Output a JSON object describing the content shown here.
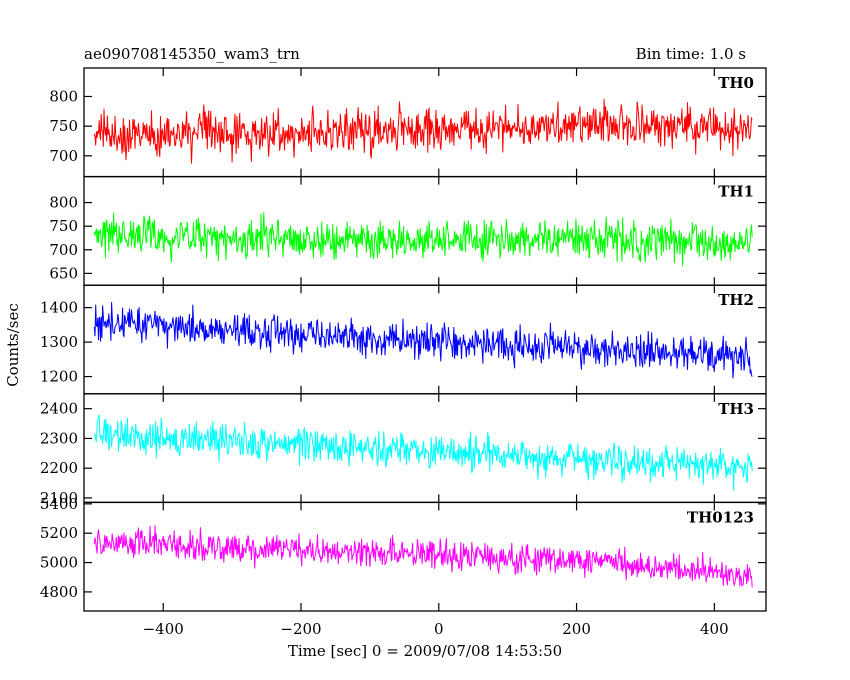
{
  "chart_data": {
    "type": "line",
    "title": "ae090708145350_wam3_trn",
    "subtitle": "Bin time: 1.0 s",
    "xlabel": "Time [sec] 0 = 2009/07/08 14:53:50",
    "ylabel": "Counts/sec",
    "xlim": [
      -515,
      475
    ],
    "data_x_range": [
      -500,
      455
    ],
    "bin_time_s": 1.0,
    "x_ticks": [
      -400,
      -200,
      0,
      200,
      400
    ],
    "grid": false,
    "panels": [
      {
        "name": "TH0",
        "color": "#ff0000",
        "ylim": [
          665,
          848
        ],
        "y_ticks": [
          700,
          750,
          800
        ],
        "trend_x": [
          -500,
          -250,
          0,
          250,
          455
        ],
        "trend_y": [
          735,
          738,
          745,
          752,
          745
        ],
        "noise_amplitude": 40
      },
      {
        "name": "TH1",
        "color": "#00ff00",
        "ylim": [
          625,
          855
        ],
        "y_ticks": [
          650,
          700,
          750,
          800
        ],
        "trend_x": [
          -500,
          -250,
          0,
          250,
          455
        ],
        "trend_y": [
          730,
          725,
          722,
          722,
          712
        ],
        "noise_amplitude": 45
      },
      {
        "name": "TH2",
        "color": "#0000ff",
        "ylim": [
          1150,
          1465
        ],
        "y_ticks": [
          1200,
          1300,
          1400
        ],
        "trend_x": [
          -500,
          -250,
          0,
          250,
          455
        ],
        "trend_y": [
          1355,
          1325,
          1300,
          1280,
          1255
        ],
        "noise_amplitude": 55
      },
      {
        "name": "TH3",
        "color": "#00ffff",
        "ylim": [
          2085,
          2450
        ],
        "y_ticks": [
          2100,
          2200,
          2300,
          2400
        ],
        "trend_x": [
          -500,
          -250,
          0,
          250,
          455
        ],
        "trend_y": [
          2315,
          2285,
          2255,
          2225,
          2195
        ],
        "noise_amplitude": 65
      },
      {
        "name": "TH0123",
        "color": "#ff00ff",
        "ylim": [
          4670,
          5410
        ],
        "y_ticks": [
          4800,
          5000,
          5200,
          5400
        ],
        "trend_x": [
          -500,
          -250,
          0,
          250,
          455
        ],
        "trend_y": [
          5150,
          5090,
          5050,
          5000,
          4920
        ],
        "noise_amplitude": 105
      }
    ]
  }
}
